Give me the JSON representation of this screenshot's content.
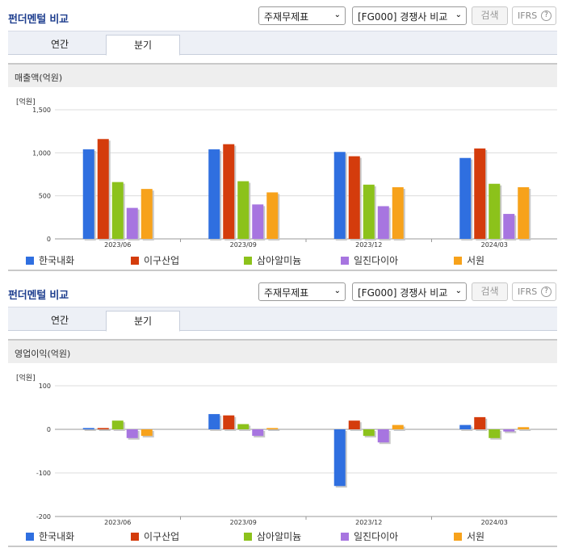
{
  "sections": [
    {
      "title": "펀더멘털 비교",
      "select_statement": "주재무제표",
      "select_compare": "[FG000] 경쟁사 비교",
      "search_button": "검색",
      "ifrs_button": "IFRS",
      "help_icon": "?",
      "tabs": [
        "연간",
        "분기"
      ],
      "active_tab": 1,
      "panel_title": "매출액(억원)"
    },
    {
      "title": "펀더멘털 비교",
      "select_statement": "주재무제표",
      "select_compare": "[FG000] 경쟁사 비교",
      "search_button": "검색",
      "ifrs_button": "IFRS",
      "help_icon": "?",
      "tabs": [
        "연간",
        "분기"
      ],
      "active_tab": 1,
      "panel_title": "영업이익(억원)"
    }
  ],
  "chart_data": [
    {
      "type": "bar",
      "unit_label": "[억원]",
      "categories": [
        "2023/06",
        "2023/09",
        "2023/12",
        "2024/03"
      ],
      "ylim": [
        0,
        1500
      ],
      "yticks": [
        0,
        500,
        1000,
        1500
      ],
      "ytick_labels": [
        "0",
        "500",
        "1,000",
        "1,500"
      ],
      "grid": true,
      "legend": "bottom",
      "series": [
        {
          "name": "한국내화",
          "color": "#2f6fe0",
          "values": [
            1040,
            1040,
            1010,
            940
          ]
        },
        {
          "name": "이구산업",
          "color": "#d43c0c",
          "values": [
            1160,
            1100,
            960,
            1050
          ]
        },
        {
          "name": "삼아알미늄",
          "color": "#8cc21b",
          "values": [
            660,
            670,
            630,
            640
          ]
        },
        {
          "name": "일진다이아",
          "color": "#a775e0",
          "values": [
            360,
            400,
            380,
            290
          ]
        },
        {
          "name": "서원",
          "color": "#f7a21b",
          "values": [
            580,
            540,
            600,
            600
          ]
        }
      ]
    },
    {
      "type": "bar",
      "unit_label": "[억원]",
      "categories": [
        "2023/06",
        "2023/09",
        "2023/12",
        "2024/03"
      ],
      "ylim": [
        -200,
        100
      ],
      "yticks": [
        -200,
        -100,
        0,
        100
      ],
      "ytick_labels": [
        "-200",
        "-100",
        "0",
        "100"
      ],
      "grid": true,
      "legend": "bottom",
      "series": [
        {
          "name": "한국내화",
          "color": "#2f6fe0",
          "values": [
            3,
            35,
            -130,
            10
          ]
        },
        {
          "name": "이구산업",
          "color": "#d43c0c",
          "values": [
            3,
            32,
            20,
            28
          ]
        },
        {
          "name": "삼아알미늄",
          "color": "#8cc21b",
          "values": [
            20,
            12,
            -15,
            -20
          ]
        },
        {
          "name": "일진다이아",
          "color": "#a775e0",
          "values": [
            -20,
            -15,
            -30,
            -5
          ]
        },
        {
          "name": "서원",
          "color": "#f7a21b",
          "values": [
            -15,
            3,
            10,
            5
          ]
        }
      ]
    }
  ]
}
